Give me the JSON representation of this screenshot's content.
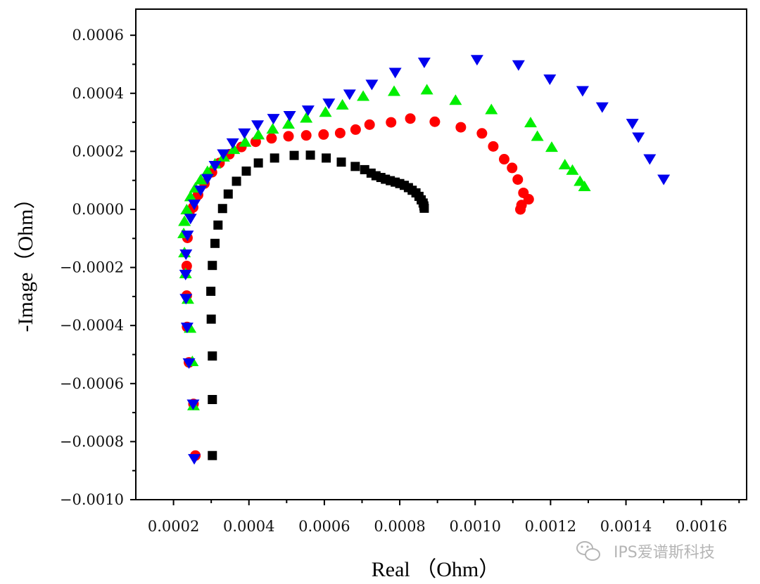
{
  "chart_data": {
    "type": "scatter",
    "title": "",
    "xlabel": "Real （Ohm）",
    "ylabel": "-Image（Ohm）",
    "xlim": [
      0.0001,
      0.00172
    ],
    "ylim": [
      -0.001,
      0.00069
    ],
    "x_ticks": [
      0.0002,
      0.0004,
      0.0006,
      0.0008,
      0.001,
      0.0012,
      0.0014,
      0.0016
    ],
    "x_tick_labels": [
      "0.0002",
      "0.0004",
      "0.0006",
      "0.0008",
      "0.0010",
      "0.0012",
      "0.0014",
      "0.0016"
    ],
    "y_ticks": [
      0.0006,
      0.0004,
      0.0002,
      0.0,
      -0.0002,
      -0.0004,
      -0.0006,
      -0.0008,
      -0.001
    ],
    "y_tick_labels": [
      "0.0006",
      "0.0004",
      "0.0002",
      "0.0000",
      "−0.0002",
      "−0.0004",
      "−0.0006",
      "−0.0008",
      "−0.0010"
    ],
    "grid": false,
    "legend": "none",
    "series": [
      {
        "name": "black-squares",
        "marker": "square",
        "color": "#000000",
        "x": [
          0.000303,
          0.000303,
          0.000303,
          0.0003,
          0.000299,
          0.000303,
          0.00031,
          0.000318,
          0.00033,
          0.000345,
          0.000367,
          0.000393,
          0.000425,
          0.000468,
          0.00052,
          0.000563,
          0.000605,
          0.000645,
          0.000682,
          0.000707,
          0.000724,
          0.000737,
          0.00075,
          0.000762,
          0.000775,
          0.000788,
          0.0008,
          0.000812,
          0.000823,
          0.000833,
          0.000843,
          0.000851,
          0.000857,
          0.000862,
          0.000864,
          0.000865
        ],
        "y": [
          -0.000848,
          -0.000655,
          -0.000505,
          -0.000378,
          -0.000282,
          -0.000193,
          -0.000117,
          -5.4e-05,
          3e-06,
          5.3e-05,
          9.7e-05,
          0.000132,
          0.00016,
          0.000177,
          0.000186,
          0.000187,
          0.000177,
          0.000163,
          0.000148,
          0.000137,
          0.000125,
          0.000116,
          0.00011,
          0.000104,
          9.9e-05,
          9.4e-05,
          8.9e-05,
          8.3e-05,
          7.5e-05,
          6.6e-05,
          5.7e-05,
          4.5e-05,
          3.3e-05,
          2.2e-05,
          1.2e-05,
          4e-06
        ]
      },
      {
        "name": "red-circles",
        "marker": "circle",
        "color": "#ff0000",
        "x": [
          0.000258,
          0.000253,
          0.000241,
          0.000236,
          0.000235,
          0.000235,
          0.000237,
          0.000242,
          0.000252,
          0.000265,
          0.000282,
          0.000302,
          0.000322,
          0.000348,
          0.00038,
          0.000418,
          0.00046,
          0.000505,
          0.000552,
          0.000598,
          0.000642,
          0.000683,
          0.00072,
          0.000777,
          0.000828,
          0.000893,
          0.000962,
          0.001018,
          0.001048,
          0.001077,
          0.001098,
          0.001113,
          0.001128,
          0.001142,
          0.001123,
          0.00112
        ],
        "y": [
          -0.000848,
          -0.00067,
          -0.000527,
          -0.000405,
          -0.000297,
          -0.000195,
          -9.8e-05,
          -1e-05,
          7e-06,
          5e-05,
          8.9e-05,
          0.000128,
          0.00016,
          0.00019,
          0.000215,
          0.000233,
          0.000245,
          0.000252,
          0.000255,
          0.000258,
          0.000263,
          0.000275,
          0.000292,
          0.0003,
          0.000313,
          0.000302,
          0.000283,
          0.000262,
          0.000217,
          0.000173,
          0.000143,
          0.000103,
          5.7e-05,
          3.5e-05,
          1.5e-05,
          0.0
        ]
      },
      {
        "name": "green-triangles",
        "marker": "triangle-up",
        "color": "#00ee00",
        "x": [
          0.000253,
          0.00025,
          0.000244,
          0.000238,
          0.000232,
          0.000229,
          0.000227,
          0.000229,
          0.000235,
          0.000245,
          0.000258,
          0.000272,
          0.00029,
          0.00031,
          0.000333,
          0.00036,
          0.00039,
          0.000425,
          0.000463,
          0.000505,
          0.000552,
          0.000603,
          0.000648,
          0.000703,
          0.000785,
          0.000872,
          0.000948,
          0.001043,
          0.001147,
          0.001165,
          0.001203,
          0.001238,
          0.001258,
          0.001278,
          0.00129
        ],
        "y": [
          -0.000675,
          -0.000523,
          -0.000408,
          -0.000308,
          -0.00022,
          -0.000148,
          -8.2e-05,
          -4e-05,
          0.0,
          4.5e-05,
          7.5e-05,
          0.000103,
          0.000132,
          0.000158,
          0.000182,
          0.000208,
          0.000233,
          0.000258,
          0.000278,
          0.000295,
          0.000316,
          0.000336,
          0.000361,
          0.000391,
          0.000408,
          0.000413,
          0.000377,
          0.000345,
          0.0003,
          0.000253,
          0.000215,
          0.000155,
          0.000136,
          9.8e-05,
          8e-05
        ]
      },
      {
        "name": "blue-inverted-triangles",
        "marker": "triangle-down",
        "color": "#0000ee",
        "x": [
          0.000255,
          0.000252,
          0.000241,
          0.000236,
          0.000233,
          0.000232,
          0.000233,
          0.000237,
          0.000245,
          0.000255,
          0.000272,
          0.00029,
          0.00031,
          0.000332,
          0.000357,
          0.000388,
          0.000423,
          0.000465,
          0.000508,
          0.000557,
          0.000612,
          0.000667,
          0.000726,
          0.000788,
          0.000865,
          0.001005,
          0.001115,
          0.001198,
          0.001285,
          0.001337,
          0.001417,
          0.001433,
          0.001463,
          0.0015
        ],
        "y": [
          -0.00086,
          -0.000672,
          -0.00053,
          -0.000407,
          -0.000308,
          -0.000225,
          -0.000155,
          -9e-05,
          -3.2e-05,
          1.7e-05,
          6.5e-05,
          0.000105,
          0.00015,
          0.00019,
          0.000228,
          0.000262,
          0.00029,
          0.000312,
          0.000322,
          0.000341,
          0.000365,
          0.000396,
          0.00043,
          0.000471,
          0.000506,
          0.000515,
          0.000497,
          0.000448,
          0.000408,
          0.000352,
          0.000295,
          0.000248,
          0.000173,
          0.000103
        ]
      }
    ]
  },
  "watermark": {
    "text": "IPS爱谱斯科技",
    "icon": "wechat-icon"
  }
}
